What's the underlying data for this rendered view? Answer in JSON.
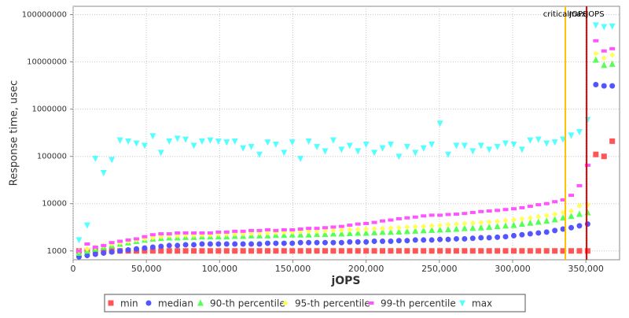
{
  "chart_data": {
    "type": "scatter",
    "xlabel": "jOPS",
    "ylabel": "Response time, usec",
    "log_y": true,
    "grid": true,
    "xlim": [
      0,
      373000
    ],
    "ylim": [
      650,
      150000000
    ],
    "xticks": [
      {
        "value": 0,
        "label": "0"
      },
      {
        "value": 50000,
        "label": "50,000"
      },
      {
        "value": 100000,
        "label": "100,000"
      },
      {
        "value": 150000,
        "label": "150,000"
      },
      {
        "value": 200000,
        "label": "200,000"
      },
      {
        "value": 250000,
        "label": "250,000"
      },
      {
        "value": 300000,
        "label": "300,000"
      },
      {
        "value": 350000,
        "label": "350,000"
      }
    ],
    "yticks": [
      1000,
      10000,
      100000,
      1000000,
      10000000,
      100000000
    ],
    "annotations": [
      {
        "label": "criticalJOPS",
        "value": 336000,
        "color": "#ffc000"
      },
      {
        "label": "maxJOPS",
        "value": 350500,
        "color": "#e00000"
      }
    ],
    "x": [
      4000,
      9600,
      15200,
      20800,
      26400,
      32000,
      37600,
      43200,
      48800,
      54400,
      60000,
      65600,
      71200,
      76800,
      82400,
      88000,
      93600,
      99200,
      104800,
      110400,
      116000,
      121600,
      127200,
      132800,
      138400,
      144000,
      149600,
      155200,
      160800,
      166400,
      172000,
      177600,
      183200,
      188800,
      194400,
      200000,
      205600,
      211200,
      216800,
      222400,
      228000,
      233600,
      239200,
      244800,
      250400,
      256000,
      261600,
      267200,
      272800,
      278400,
      284000,
      289600,
      295200,
      300800,
      306400,
      312000,
      317600,
      323200,
      328800,
      334400,
      340000,
      345600,
      351200,
      356800,
      362400,
      368000
    ],
    "series": [
      {
        "name": "min",
        "color": "#ff5555",
        "marker": "square",
        "values": [
          1000,
          1000,
          1000,
          1000,
          1000,
          1000,
          1000,
          1000,
          1000,
          1000,
          1000,
          1000,
          1000,
          1000,
          1000,
          1000,
          1000,
          1000,
          1000,
          1000,
          1000,
          1000,
          1000,
          1000,
          1000,
          1000,
          1000,
          1000,
          1000,
          1000,
          1000,
          1000,
          1000,
          1000,
          1000,
          1000,
          1000,
          1000,
          1000,
          1000,
          1000,
          1000,
          1000,
          1000,
          1000,
          1000,
          1000,
          1000,
          1000,
          1000,
          1000,
          1000,
          1000,
          1000,
          1000,
          1000,
          1000,
          1000,
          1000,
          1000,
          1000,
          1000,
          1000,
          110000,
          100000,
          210000
        ]
      },
      {
        "name": "median",
        "color": "#5555ff",
        "marker": "circle",
        "values": [
          750,
          800,
          850,
          900,
          950,
          1000,
          1050,
          1100,
          1150,
          1200,
          1250,
          1300,
          1300,
          1350,
          1350,
          1400,
          1400,
          1400,
          1400,
          1400,
          1400,
          1400,
          1400,
          1450,
          1450,
          1450,
          1450,
          1500,
          1500,
          1500,
          1500,
          1500,
          1500,
          1550,
          1550,
          1550,
          1600,
          1600,
          1600,
          1650,
          1650,
          1700,
          1700,
          1700,
          1750,
          1750,
          1800,
          1800,
          1850,
          1900,
          1900,
          1950,
          2000,
          2100,
          2200,
          2300,
          2400,
          2500,
          2700,
          2900,
          3100,
          3400,
          3700,
          3300000,
          3100000,
          3100000
        ]
      },
      {
        "name": "90-th percentile",
        "color": "#55ff55",
        "marker": "triangle-up",
        "values": [
          900,
          1000,
          1100,
          1200,
          1300,
          1400,
          1500,
          1600,
          1700,
          1800,
          1850,
          1900,
          1900,
          1950,
          1950,
          2000,
          2000,
          2000,
          2000,
          2050,
          2050,
          2100,
          2100,
          2100,
          2150,
          2150,
          2200,
          2200,
          2200,
          2250,
          2250,
          2300,
          2300,
          2350,
          2400,
          2400,
          2450,
          2500,
          2500,
          2550,
          2600,
          2650,
          2700,
          2750,
          2800,
          2850,
          2900,
          3000,
          3050,
          3100,
          3200,
          3300,
          3400,
          3500,
          3700,
          3900,
          4100,
          4300,
          4600,
          5000,
          5400,
          6000,
          6500,
          11000000,
          8500000,
          9000000
        ]
      },
      {
        "name": "95-th percentile",
        "color": "#ffff55",
        "marker": "diamond",
        "values": [
          1000,
          1100,
          1200,
          1300,
          1400,
          1500,
          1600,
          1700,
          1800,
          1900,
          2000,
          2100,
          2100,
          2150,
          2150,
          2200,
          2200,
          2250,
          2250,
          2300,
          2300,
          2350,
          2400,
          2400,
          2450,
          2500,
          2500,
          2550,
          2600,
          2600,
          2650,
          2700,
          2750,
          2800,
          2850,
          2900,
          2950,
          3000,
          3050,
          3100,
          3200,
          3250,
          3300,
          3400,
          3500,
          3600,
          3700,
          3800,
          3900,
          4000,
          4100,
          4200,
          4400,
          4600,
          4800,
          5000,
          5300,
          5600,
          6000,
          6500,
          7000,
          9000,
          9500,
          15000000,
          12000000,
          14000000
        ]
      },
      {
        "name": "99-th percentile",
        "color": "#ff55ff",
        "marker": "rect",
        "values": [
          1000,
          1400,
          1200,
          1300,
          1500,
          1600,
          1700,
          1800,
          2000,
          2200,
          2300,
          2300,
          2400,
          2400,
          2400,
          2400,
          2400,
          2500,
          2500,
          2600,
          2600,
          2700,
          2700,
          2800,
          2700,
          2800,
          2800,
          2900,
          3000,
          3000,
          3100,
          3200,
          3300,
          3500,
          3700,
          3800,
          4000,
          4300,
          4500,
          4800,
          5000,
          5200,
          5500,
          5700,
          5700,
          5900,
          6000,
          6200,
          6500,
          6800,
          7000,
          7200,
          7500,
          7800,
          8200,
          8800,
          9500,
          10000,
          11000,
          12000,
          15000,
          24000,
          65000,
          28000000,
          17000000,
          19000000
        ]
      },
      {
        "name": "max",
        "color": "#55ffff",
        "marker": "triangle-down",
        "values": [
          1700,
          3500,
          90000,
          45000,
          85000,
          220000,
          210000,
          190000,
          170000,
          270000,
          120000,
          210000,
          240000,
          230000,
          170000,
          210000,
          220000,
          210000,
          200000,
          210000,
          150000,
          160000,
          110000,
          200000,
          180000,
          120000,
          200000,
          90000,
          210000,
          160000,
          130000,
          220000,
          140000,
          170000,
          130000,
          180000,
          120000,
          150000,
          180000,
          100000,
          160000,
          120000,
          150000,
          180000,
          500000,
          110000,
          170000,
          170000,
          130000,
          170000,
          140000,
          160000,
          190000,
          180000,
          140000,
          220000,
          230000,
          190000,
          200000,
          230000,
          280000,
          330000,
          600000,
          60000000,
          55000000,
          57000000
        ]
      }
    ]
  }
}
